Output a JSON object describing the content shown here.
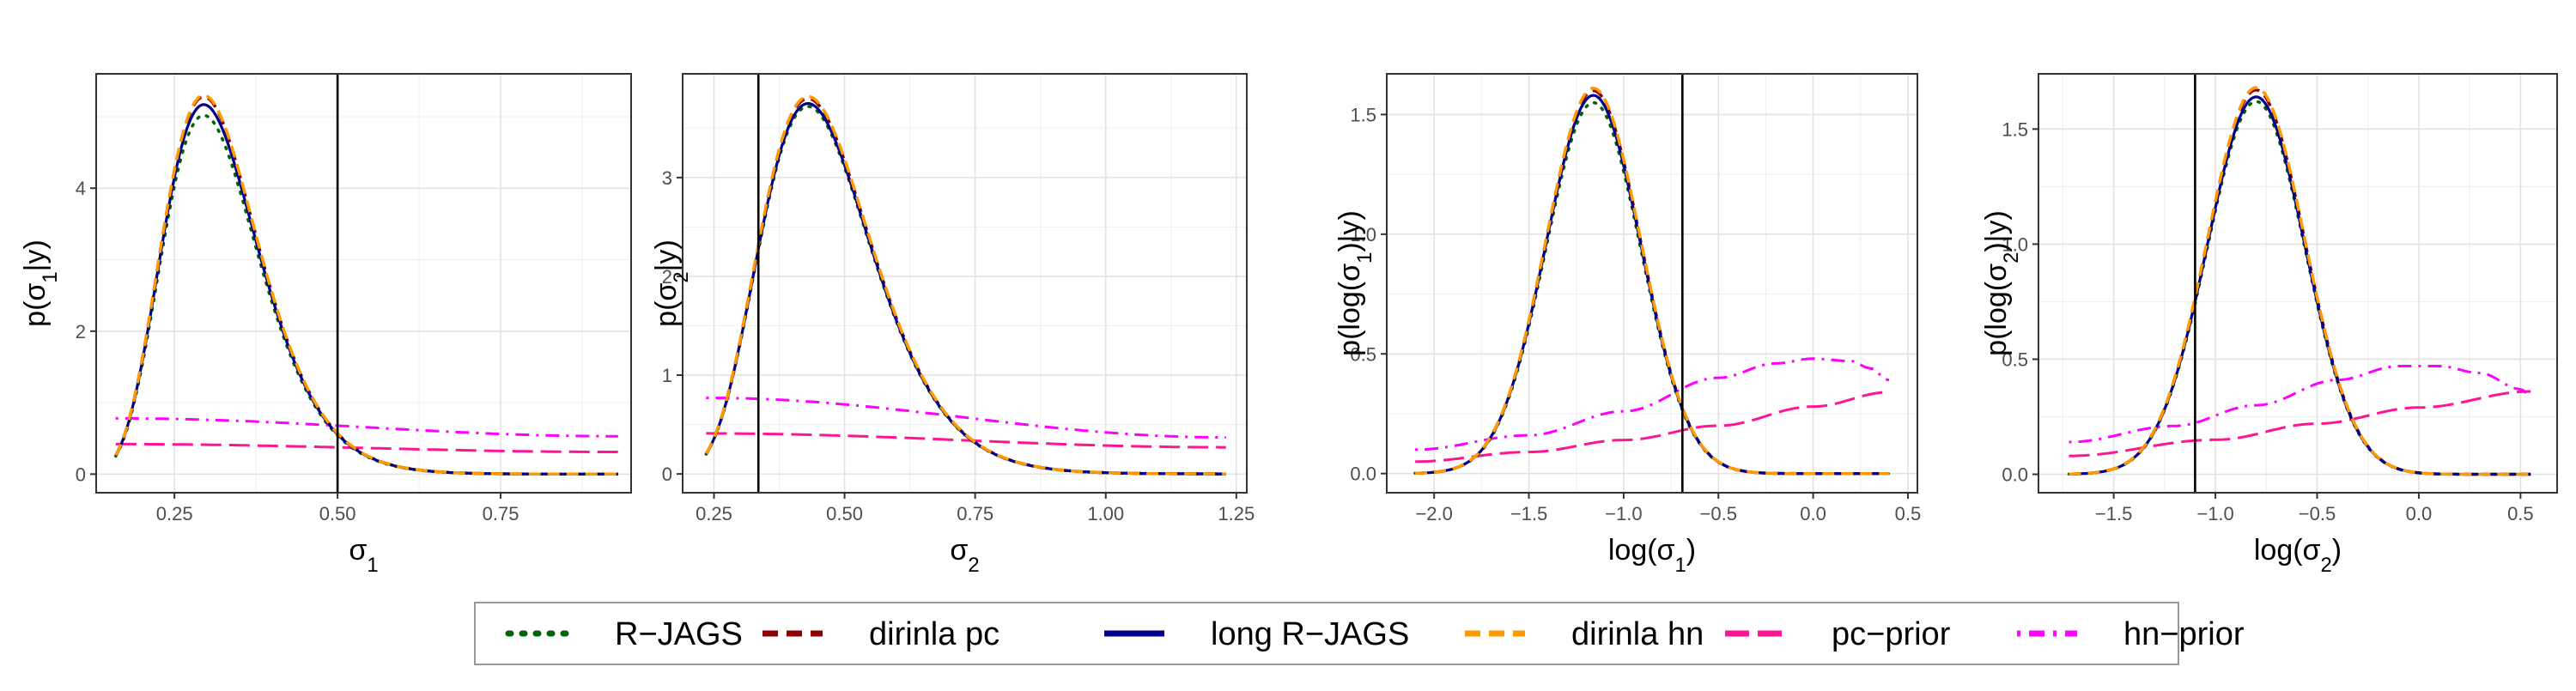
{
  "figure": {
    "legend": {
      "placement": "bottom",
      "entries": [
        {
          "label": "R−JAGS",
          "color": "#006400",
          "dash": "dotted"
        },
        {
          "label": "dirinla pc",
          "color": "#8b0000",
          "dash": "dashed"
        },
        {
          "label": "long R−JAGS",
          "color": "#00008b",
          "dash": "solid"
        },
        {
          "label": "dirinla hn",
          "color": "#ff9900",
          "dash": "dashed"
        },
        {
          "label": "pc−prior",
          "color": "#ff1493",
          "dash": "longdash"
        },
        {
          "label": "hn−prior",
          "color": "#ff00ff",
          "dash": "dotdash"
        }
      ]
    }
  },
  "chart_data": [
    {
      "type": "line",
      "xlabel": "σ1",
      "ylabel": "p(σ1|y)",
      "xlim": [
        0.13,
        0.95
      ],
      "ylim": [
        -0.26,
        5.6
      ],
      "xticks": [
        0.25,
        0.5,
        0.75
      ],
      "xticklabels": [
        "0.25",
        "0.50",
        "0.75"
      ],
      "yticks": [
        0,
        2,
        4
      ],
      "yticklabels": [
        "0",
        "2",
        "4"
      ],
      "vline": 0.5,
      "grid": true,
      "posterior": {
        "kind": "lognormal",
        "x_range": [
          0.16,
          0.93
        ],
        "peak_x": 0.295,
        "peaks": {
          "R-JAGS": 5.02,
          "dirinla pc": 5.28,
          "long R-JAGS": 5.17,
          "dirinla hn": 5.3
        }
      },
      "prior_pc": {
        "x": [
          0.16,
          0.93
        ],
        "y": [
          0.42,
          0.31
        ]
      },
      "prior_hn": {
        "x": [
          0.16,
          0.93
        ],
        "y": [
          0.78,
          0.53
        ]
      }
    },
    {
      "type": "line",
      "xlabel": "σ2",
      "ylabel": "p(σ2|y)",
      "xlim": [
        0.19,
        1.27
      ],
      "ylim": [
        -0.19,
        4.05
      ],
      "xticks": [
        0.25,
        0.5,
        0.75,
        1.0,
        1.25
      ],
      "xticklabels": [
        "0.25",
        "0.50",
        "0.75",
        "1.00",
        "1.25"
      ],
      "yticks": [
        0,
        1,
        2,
        3
      ],
      "yticklabels": [
        "0",
        "1",
        "2",
        "3"
      ],
      "vline": 0.335,
      "grid": true,
      "posterior": {
        "kind": "lognormal",
        "x_range": [
          0.235,
          1.23
        ],
        "peak_x": 0.43,
        "peaks": {
          "R-JAGS": 3.72,
          "dirinla pc": 3.8,
          "long R-JAGS": 3.75,
          "dirinla hn": 3.82
        }
      },
      "prior_pc": {
        "x": [
          0.235,
          1.23
        ],
        "y": [
          0.41,
          0.27
        ]
      },
      "prior_hn": {
        "x": [
          0.235,
          1.23
        ],
        "y": [
          0.77,
          0.37
        ]
      }
    },
    {
      "type": "line",
      "xlabel": "log(σ1)",
      "ylabel": "p(log(σ1)|y)",
      "xlim": [
        -2.25,
        0.55
      ],
      "ylim": [
        -0.08,
        1.67
      ],
      "xticks": [
        -2.0,
        -1.5,
        -1.0,
        -0.5,
        0.0,
        0.5
      ],
      "xticklabels": [
        "−2.0",
        "−1.5",
        "−1.0",
        "−0.5",
        "0.0",
        "0.5"
      ],
      "yticks": [
        0.0,
        0.5,
        1.0,
        1.5
      ],
      "yticklabels": [
        "0.0",
        "0.5",
        "1.0",
        "1.5"
      ],
      "vline": -0.69,
      "grid": true,
      "posterior": {
        "kind": "gaussian",
        "x_range": [
          -2.1,
          0.4
        ],
        "mean": -1.16,
        "sd": 0.25,
        "peaks": {
          "R-JAGS": 1.55,
          "dirinla pc": 1.6,
          "long R-JAGS": 1.58,
          "dirinla hn": 1.61
        }
      },
      "prior_pc": {
        "x": [
          -2.1,
          -1.5,
          -1.0,
          -0.5,
          0.0,
          0.4
        ],
        "y": [
          0.05,
          0.09,
          0.14,
          0.2,
          0.28,
          0.34
        ]
      },
      "prior_hn": {
        "x": [
          -2.1,
          -1.5,
          -1.0,
          -0.5,
          -0.2,
          0.0,
          0.2,
          0.3,
          0.4
        ],
        "y": [
          0.1,
          0.16,
          0.26,
          0.4,
          0.46,
          0.48,
          0.47,
          0.44,
          0.39
        ]
      }
    },
    {
      "type": "line",
      "xlabel": "log(σ2)",
      "ylabel": "p(log(σ2)|y)",
      "xlim": [
        -1.87,
        0.68
      ],
      "ylim": [
        -0.08,
        1.74
      ],
      "xticks": [
        -1.5,
        -1.0,
        -0.5,
        0.0,
        0.5
      ],
      "xticklabels": [
        "−1.5",
        "−1.0",
        "−0.5",
        "0.0",
        "0.5"
      ],
      "yticks": [
        0.0,
        0.5,
        1.0,
        1.5
      ],
      "yticklabels": [
        "0.0",
        "0.5",
        "1.0",
        "1.5"
      ],
      "vline": -1.1,
      "grid": true,
      "posterior": {
        "kind": "gaussian",
        "x_range": [
          -1.72,
          0.55
        ],
        "mean": -0.8,
        "sd": 0.24,
        "peaks": {
          "R-JAGS": 1.62,
          "dirinla pc": 1.67,
          "long R-JAGS": 1.64,
          "dirinla hn": 1.68
        }
      },
      "prior_pc": {
        "x": [
          -1.72,
          -1.0,
          -0.5,
          0.0,
          0.55
        ],
        "y": [
          0.08,
          0.15,
          0.22,
          0.29,
          0.36
        ]
      },
      "prior_hn": {
        "x": [
          -1.72,
          -1.2,
          -0.8,
          -0.4,
          -0.1,
          0.1,
          0.3,
          0.5,
          0.55
        ],
        "y": [
          0.14,
          0.21,
          0.3,
          0.41,
          0.47,
          0.47,
          0.44,
          0.37,
          0.34
        ]
      }
    }
  ]
}
